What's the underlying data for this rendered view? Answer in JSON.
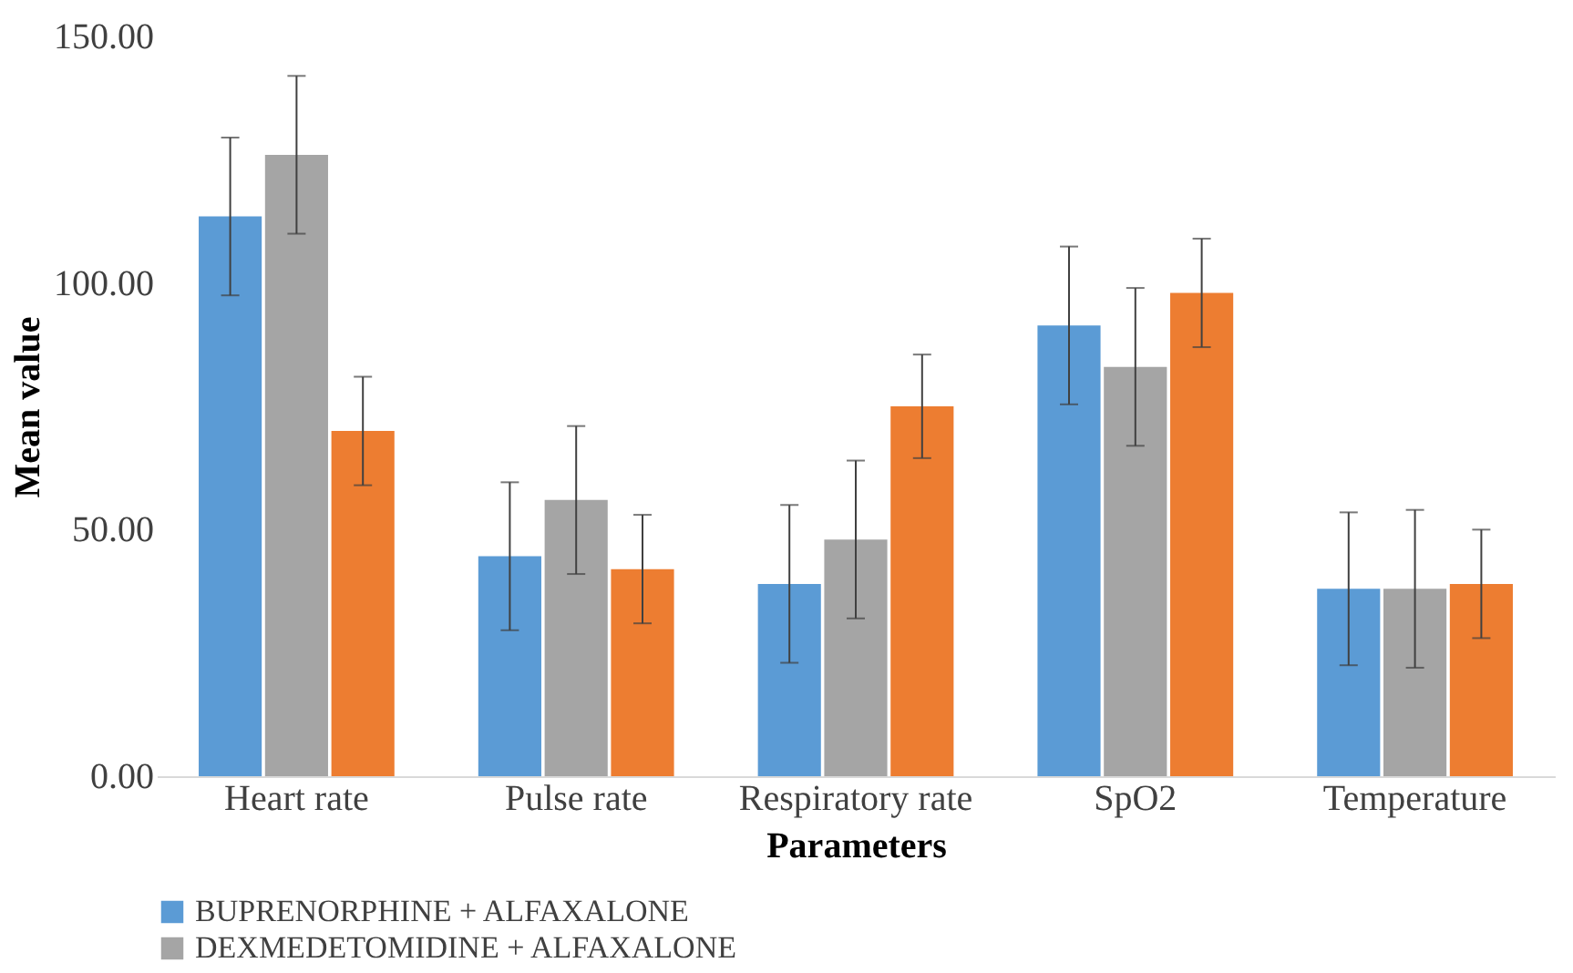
{
  "chart_data": {
    "type": "bar",
    "xlabel": "Parameters",
    "ylabel": "Mean value",
    "categories": [
      "Heart rate",
      "Pulse rate",
      "Respiratory rate",
      "SpO2",
      "Temperature"
    ],
    "series": [
      {
        "name": "BUPRENORPHINE + ALFAXALONE",
        "color": "#5b9bd5",
        "values": [
          113.5,
          44.6,
          39,
          91.4,
          38
        ],
        "errors": [
          16,
          15,
          16,
          16,
          15.5
        ]
      },
      {
        "name": "DEXMEDETOMIDINE + ALFAXALONE",
        "color": "#a5a5a5",
        "values": [
          126,
          56,
          48,
          83,
          38
        ],
        "errors": [
          16,
          15,
          16,
          16,
          16
        ]
      },
      {
        "color": "#ed7d31",
        "values": [
          70,
          42,
          75,
          98,
          39
        ],
        "errors": [
          11,
          11,
          10.5,
          11,
          11
        ]
      }
    ],
    "ylim": [
      0,
      150
    ],
    "yticks": [
      {
        "value": 0,
        "label": "0.00"
      },
      {
        "value": 50,
        "label": "50.00"
      },
      {
        "value": 100,
        "label": "100.00"
      },
      {
        "value": 150,
        "label": "150.00"
      }
    ],
    "grid": false,
    "legend": "bottom"
  }
}
